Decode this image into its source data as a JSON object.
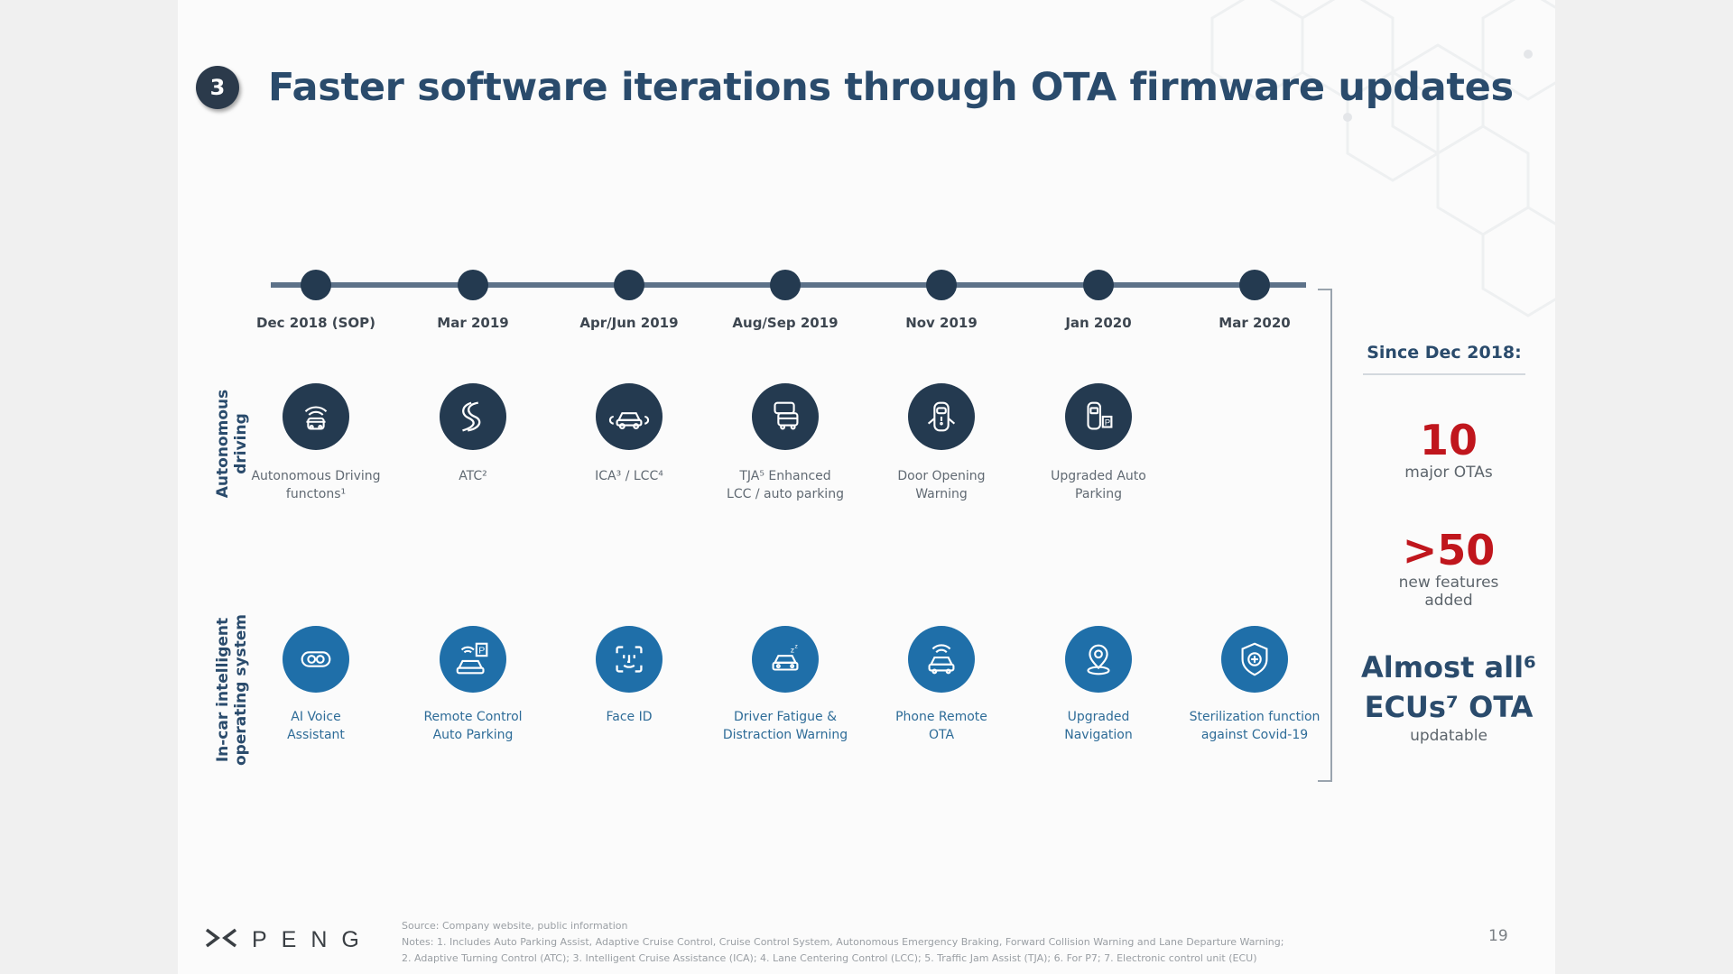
{
  "slide": {
    "number": "3",
    "title": "Faster software iterations through OTA firmware updates"
  },
  "timeline": {
    "dates": [
      "Dec 2018 (SOP)",
      "Mar 2019",
      "Apr/Jun 2019",
      "Aug/Sep 2019",
      "Nov 2019",
      "Jan 2020",
      "Mar 2020"
    ]
  },
  "rows": {
    "autonomous_label": "Autonomous driving",
    "incar_label": "In-car intelligent operating system"
  },
  "autonomous": [
    {
      "icon": "autonomous-car-icon",
      "label": "Autonomous Driving functons¹"
    },
    {
      "icon": "curvy-road-icon",
      "label": "ATC²"
    },
    {
      "icon": "car-sensor-icon",
      "label": "ICA³ / LCC⁴"
    },
    {
      "icon": "traffic-jam-icon",
      "label": "TJA⁵ Enhanced LCC / auto parking"
    },
    {
      "icon": "door-warning-icon",
      "label": "Door Opening Warning"
    },
    {
      "icon": "auto-parking-icon",
      "label": "Upgraded Auto Parking"
    }
  ],
  "incar": [
    {
      "icon": "voice-assistant-icon",
      "label": "AI Voice Assistant"
    },
    {
      "icon": "remote-parking-icon",
      "label": "Remote Control Auto Parking"
    },
    {
      "icon": "face-id-icon",
      "label": "Face ID"
    },
    {
      "icon": "driver-fatigue-icon",
      "label": "Driver Fatigue & Distraction Warning"
    },
    {
      "icon": "phone-remote-icon",
      "label": "Phone Remote OTA"
    },
    {
      "icon": "navigation-pin-icon",
      "label": "Upgraded Navigation"
    },
    {
      "icon": "sterilization-shield-icon",
      "label": "Sterilization function against Covid-19"
    }
  ],
  "summary": {
    "heading": "Since Dec 2018:",
    "otas_number": "10",
    "otas_label": "major OTAs",
    "features_number": ">50",
    "features_label_1": "new features",
    "features_label_2": "added",
    "ecu_line1": "Almost all⁶",
    "ecu_line2": "ECUs⁷ OTA",
    "ecu_label": "updatable"
  },
  "footer": {
    "logo": "XPENG",
    "source": "Source: Company website, public information",
    "notes_1": "Notes: 1. Includes Auto Parking Assist, Adaptive Cruise Control, Cruise Control System, Autonomous Emergency Braking, Forward Collision Warning and Lane Departure Warning;",
    "notes_2": "2. Adaptive Turning Control (ATC); 3. Intelligent Cruise Assistance (ICA); 4. Lane Centering Control (LCC); 5. Traffic Jam Assist (TJA); 6. For P7; 7. Electronic control unit (ECU)",
    "page": "19"
  },
  "colors": {
    "title": "#2a4b6c",
    "accent_red": "#c0161d",
    "dark_icon": "#243a50",
    "blue_icon": "#1f6fa9",
    "timeline_line": "#5d7289"
  }
}
